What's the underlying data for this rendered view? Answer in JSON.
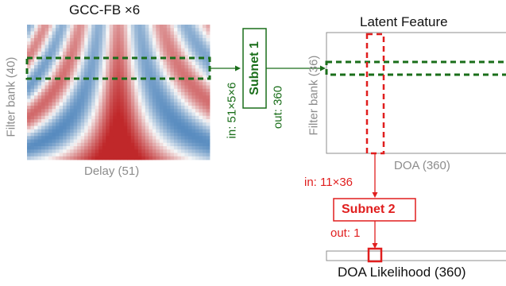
{
  "input": {
    "title": "GCC-FB ×6",
    "ylabel": "Filter bank (40)",
    "xlabel": "Delay (51)",
    "grid_cols": 51,
    "grid_rows": 40
  },
  "subnet1": {
    "label": "Subnet 1",
    "in_label": "in: 51×5×6",
    "out_label": "out: 360",
    "color": "#1a6e1a"
  },
  "latent": {
    "title": "Latent Feature",
    "ylabel": "Filter bank (36)",
    "xlabel": "DOA (360)"
  },
  "subnet2": {
    "label": "Subnet 2",
    "in_label": "in: 11×36",
    "out_label": "out: 1",
    "color": "#e01e1e"
  },
  "output": {
    "label": "DOA Likelihood (360)"
  },
  "colors": {
    "green": "#1a6e1a",
    "red": "#e01e1e",
    "gray": "#8c8c8c",
    "heat_pos": "#c0282a",
    "heat_neg": "#2166ac"
  }
}
